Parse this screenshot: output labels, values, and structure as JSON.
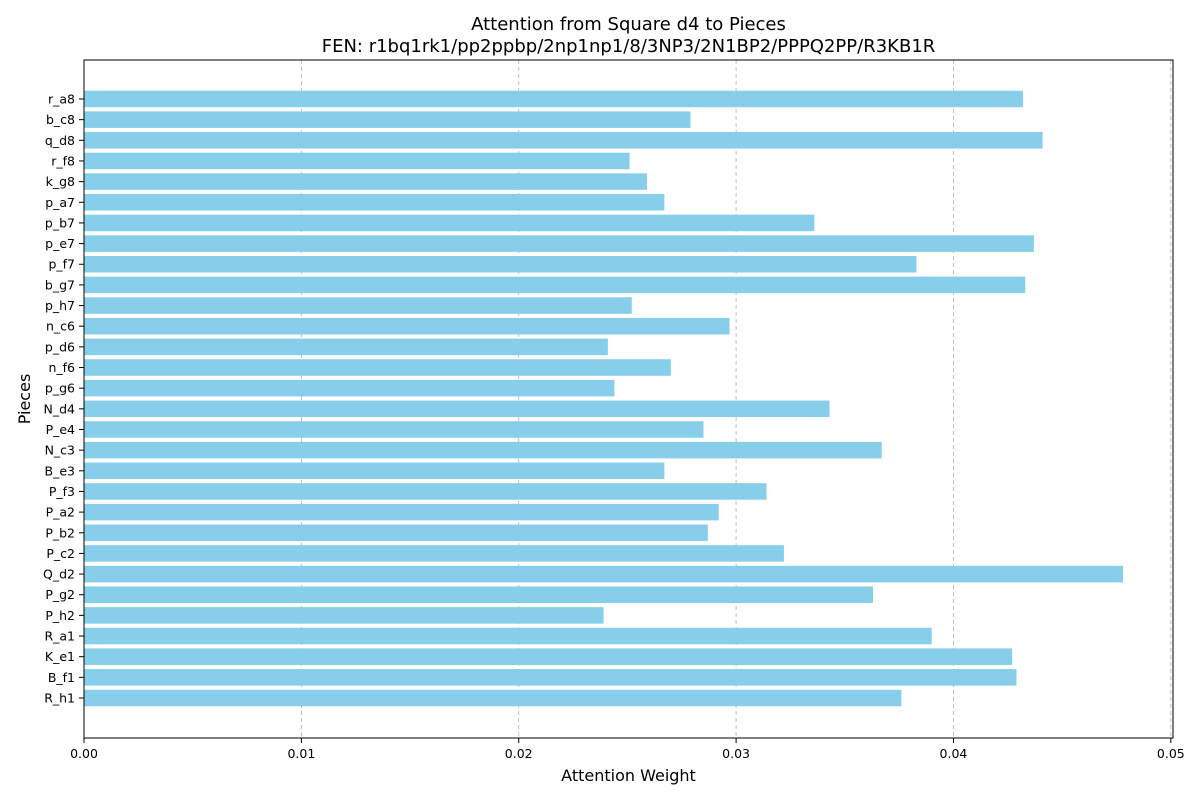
{
  "chart_data": {
    "type": "bar",
    "orientation": "horizontal",
    "title": "Attention from Square d4 to Pieces",
    "subtitle": "FEN: r1bq1rk1/pp2ppbp/2np1np1/8/3NP3/2N1BP2/PPPQ2PP/R3KB1R",
    "xlabel": "Attention Weight",
    "ylabel": "Pieces",
    "xlim": [
      0,
      0.0501
    ],
    "xticks": [
      0.0,
      0.01,
      0.02,
      0.03,
      0.04,
      0.05
    ],
    "xtick_labels": [
      "0.00",
      "0.01",
      "0.02",
      "0.03",
      "0.04",
      "0.05"
    ],
    "grid": "x-axis dashed",
    "bar_color": "#87ceeb",
    "categories": [
      "r_a8",
      "b_c8",
      "q_d8",
      "r_f8",
      "k_g8",
      "p_a7",
      "p_b7",
      "p_e7",
      "p_f7",
      "b_g7",
      "p_h7",
      "n_c6",
      "p_d6",
      "n_f6",
      "p_g6",
      "N_d4",
      "P_e4",
      "N_c3",
      "B_e3",
      "P_f3",
      "P_a2",
      "P_b2",
      "P_c2",
      "Q_d2",
      "P_g2",
      "P_h2",
      "R_a1",
      "K_e1",
      "B_f1",
      "R_h1"
    ],
    "values": [
      0.0432,
      0.0279,
      0.0441,
      0.0251,
      0.0259,
      0.0267,
      0.0336,
      0.0437,
      0.0383,
      0.0433,
      0.0252,
      0.0297,
      0.0241,
      0.027,
      0.0244,
      0.0343,
      0.0285,
      0.0367,
      0.0267,
      0.0314,
      0.0292,
      0.0287,
      0.0322,
      0.0478,
      0.0363,
      0.0239,
      0.039,
      0.0427,
      0.0429,
      0.0376
    ]
  }
}
